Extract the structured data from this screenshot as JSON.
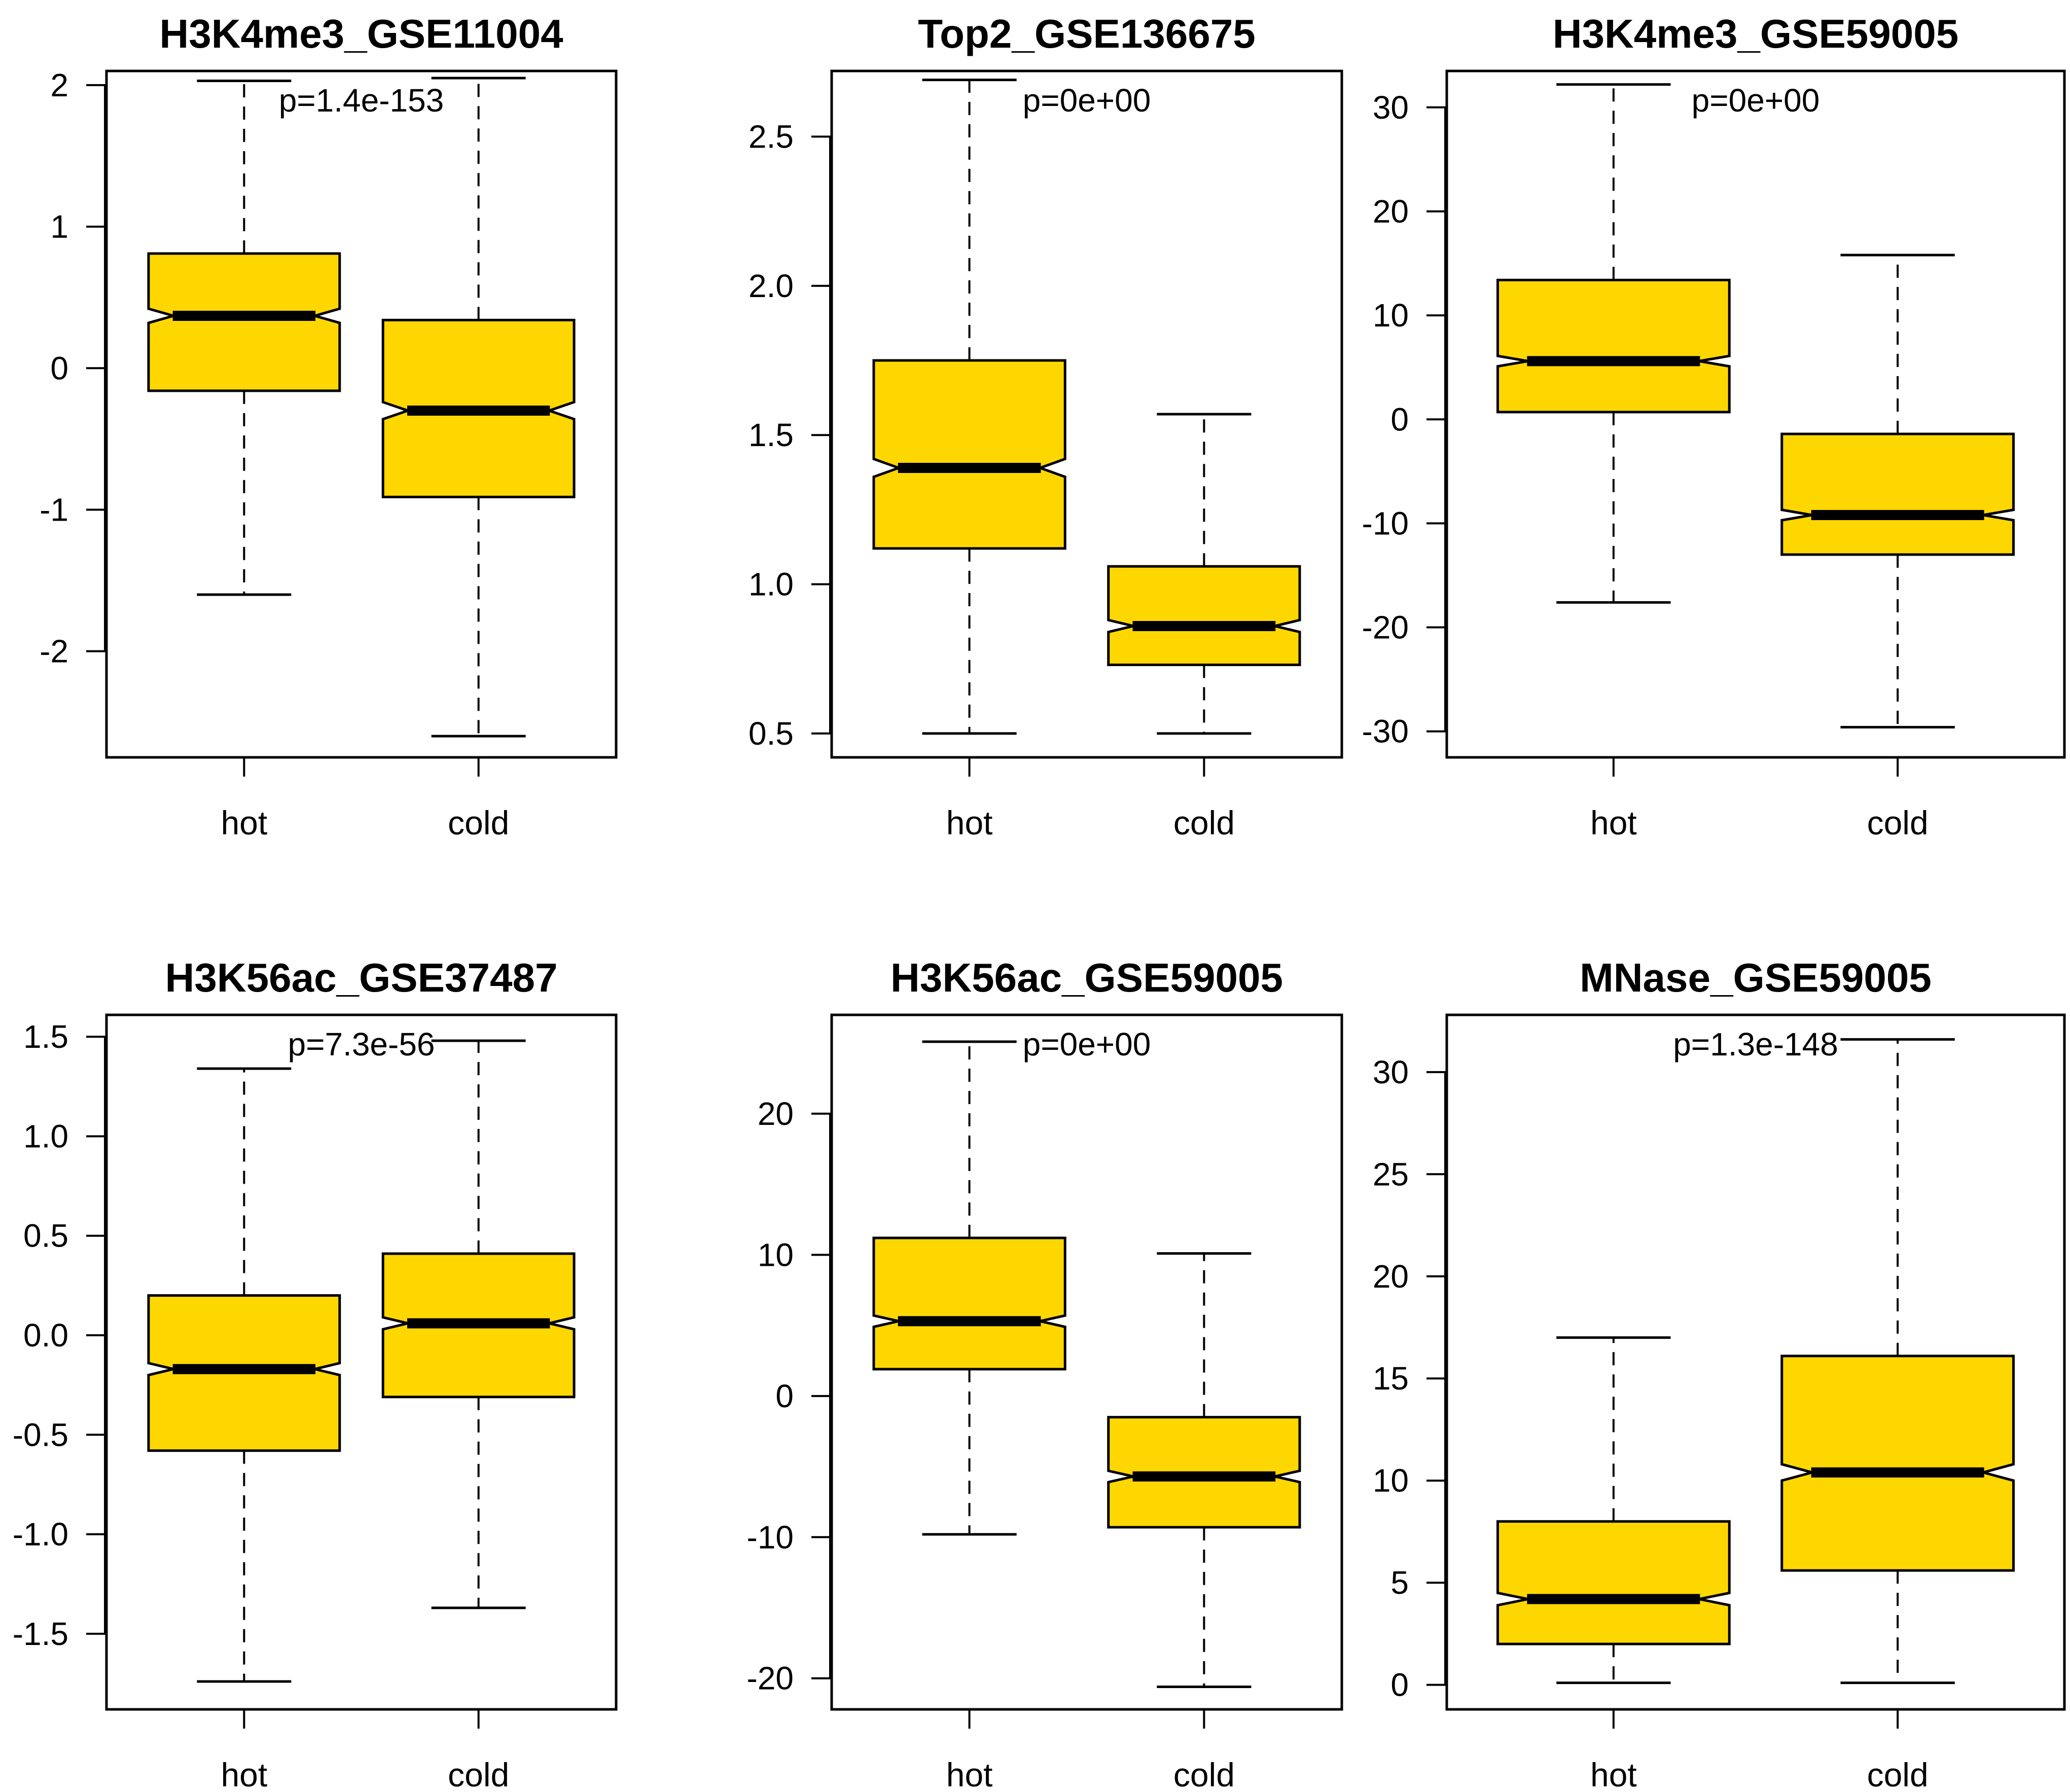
{
  "chart_data": [
    {
      "type": "boxplot",
      "title": "H3K4me3_GSE11004",
      "p_value": "p=1.4e-153",
      "ylim": [
        -2.75,
        2.1
      ],
      "yticks": [
        -2,
        -1,
        0,
        1,
        2
      ],
      "ytick_labels": [
        "-2",
        "-1",
        "0",
        "1",
        "2"
      ],
      "categories": [
        "hot",
        "cold"
      ],
      "boxes": [
        {
          "category": "hot",
          "whisker_low": -1.6,
          "q1": -0.16,
          "median": 0.37,
          "q3": 0.81,
          "whisker_high": 2.03,
          "notch_low": 0.32,
          "notch_high": 0.42
        },
        {
          "category": "cold",
          "whisker_low": -2.6,
          "q1": -0.91,
          "median": -0.3,
          "q3": 0.34,
          "whisker_high": 2.05,
          "notch_low": -0.36,
          "notch_high": -0.24
        }
      ],
      "fill_color": "#FFD700"
    },
    {
      "type": "boxplot",
      "title": "Top2_GSE136675",
      "p_value": "p=0e+00",
      "ylim": [
        0.42,
        2.72
      ],
      "yticks": [
        0.5,
        1.0,
        1.5,
        2.0,
        2.5
      ],
      "ytick_labels": [
        "0.5",
        "1.0",
        "1.5",
        "2.0",
        "2.5"
      ],
      "categories": [
        "hot",
        "cold"
      ],
      "boxes": [
        {
          "category": "hot",
          "whisker_low": 0.5,
          "q1": 1.12,
          "median": 1.39,
          "q3": 1.75,
          "whisker_high": 2.69,
          "notch_low": 1.36,
          "notch_high": 1.42
        },
        {
          "category": "cold",
          "whisker_low": 0.5,
          "q1": 0.73,
          "median": 0.86,
          "q3": 1.06,
          "whisker_high": 1.57,
          "notch_low": 0.84,
          "notch_high": 0.88
        }
      ],
      "fill_color": "#FFD700"
    },
    {
      "type": "boxplot",
      "title": "H3K4me3_GSE59005",
      "p_value": "p=0e+00",
      "ylim": [
        -32.5,
        33.5
      ],
      "yticks": [
        -30,
        -20,
        -10,
        0,
        10,
        20,
        30
      ],
      "ytick_labels": [
        "-30",
        "-20",
        "-10",
        "0",
        "10",
        "20",
        "30"
      ],
      "categories": [
        "hot",
        "cold"
      ],
      "boxes": [
        {
          "category": "hot",
          "whisker_low": -17.6,
          "q1": 0.7,
          "median": 5.6,
          "q3": 13.4,
          "whisker_high": 32.2,
          "notch_low": 5.1,
          "notch_high": 6.1
        },
        {
          "category": "cold",
          "whisker_low": -29.6,
          "q1": -13.0,
          "median": -9.2,
          "q3": -1.4,
          "whisker_high": 15.8,
          "notch_low": -9.7,
          "notch_high": -8.7
        }
      ],
      "fill_color": "#FFD700"
    },
    {
      "type": "boxplot",
      "title": "H3K56ac_GSE37487",
      "p_value": "p=7.3e-56",
      "ylim": [
        -1.88,
        1.61
      ],
      "yticks": [
        -1.5,
        -1.0,
        -0.5,
        0.0,
        0.5,
        1.0,
        1.5
      ],
      "ytick_labels": [
        "-1.5",
        "-1.0",
        "-0.5",
        "0.0",
        "0.5",
        "1.0",
        "1.5"
      ],
      "categories": [
        "hot",
        "cold"
      ],
      "boxes": [
        {
          "category": "hot",
          "whisker_low": -1.74,
          "q1": -0.58,
          "median": -0.17,
          "q3": 0.2,
          "whisker_high": 1.34,
          "notch_low": -0.2,
          "notch_high": -0.14
        },
        {
          "category": "cold",
          "whisker_low": -1.37,
          "q1": -0.31,
          "median": 0.06,
          "q3": 0.41,
          "whisker_high": 1.48,
          "notch_low": 0.03,
          "notch_high": 0.09
        }
      ],
      "fill_color": "#FFD700"
    },
    {
      "type": "boxplot",
      "title": "H3K56ac_GSE59005",
      "p_value": "p=0e+00",
      "ylim": [
        -22.2,
        27.0
      ],
      "yticks": [
        -20,
        -10,
        0,
        10,
        20
      ],
      "ytick_labels": [
        "-20",
        "-10",
        "0",
        "10",
        "20"
      ],
      "categories": [
        "hot",
        "cold"
      ],
      "boxes": [
        {
          "category": "hot",
          "whisker_low": -9.8,
          "q1": 1.9,
          "median": 5.3,
          "q3": 11.2,
          "whisker_high": 25.1,
          "notch_low": 4.9,
          "notch_high": 5.7
        },
        {
          "category": "cold",
          "whisker_low": -20.6,
          "q1": -9.3,
          "median": -5.7,
          "q3": -1.5,
          "whisker_high": 10.1,
          "notch_low": -6.1,
          "notch_high": -5.3
        }
      ],
      "fill_color": "#FFD700"
    },
    {
      "type": "boxplot",
      "title": "MNase_GSE59005",
      "p_value": "p=1.3e-148",
      "ylim": [
        -1.2,
        32.8
      ],
      "yticks": [
        0,
        5,
        10,
        15,
        20,
        25,
        30
      ],
      "ytick_labels": [
        "0",
        "5",
        "10",
        "15",
        "20",
        "25",
        "30"
      ],
      "categories": [
        "hot",
        "cold"
      ],
      "boxes": [
        {
          "category": "hot",
          "whisker_low": 0.1,
          "q1": 2.0,
          "median": 4.2,
          "q3": 8.0,
          "whisker_high": 17.0,
          "notch_low": 3.9,
          "notch_high": 4.5
        },
        {
          "category": "cold",
          "whisker_low": 0.1,
          "q1": 5.6,
          "median": 10.4,
          "q3": 16.1,
          "whisker_high": 31.6,
          "notch_low": 10.0,
          "notch_high": 10.8
        }
      ],
      "fill_color": "#FFD700"
    }
  ]
}
